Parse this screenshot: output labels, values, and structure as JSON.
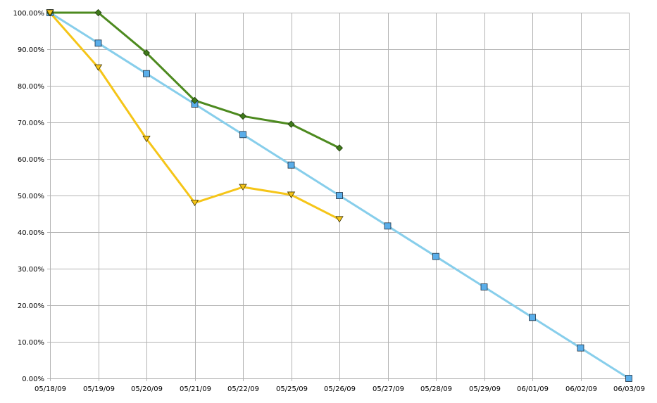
{
  "chart_data": {
    "type": "line",
    "title": "",
    "xlabel": "",
    "ylabel": "",
    "categories": [
      "05/18/09",
      "05/19/09",
      "05/20/09",
      "05/21/09",
      "05/22/09",
      "05/25/09",
      "05/26/09",
      "05/27/09",
      "05/28/09",
      "05/29/09",
      "06/01/09",
      "06/02/09",
      "06/03/09"
    ],
    "y_ticks": [
      "0.00%",
      "10.00%",
      "20.00%",
      "30.00%",
      "40.00%",
      "50.00%",
      "60.00%",
      "70.00%",
      "80.00%",
      "90.00%",
      "100.00%"
    ],
    "ylim": [
      0,
      1
    ],
    "grid": true,
    "legend": "none",
    "series": [
      {
        "color": "#87ceeb",
        "marker": "square",
        "marker_color": "#5aaeea",
        "values": [
          1.0,
          0.9167,
          0.8333,
          0.75,
          0.6667,
          0.5833,
          0.5,
          0.4167,
          0.3333,
          0.25,
          0.1667,
          0.0833,
          0.0
        ]
      },
      {
        "color": "#4d8a1f",
        "marker": "diamond",
        "marker_color": "#3f7a1a",
        "values": [
          1.0,
          1.0,
          0.89,
          0.76,
          0.717,
          0.695,
          0.63,
          null,
          null,
          null,
          null,
          null,
          null
        ]
      },
      {
        "color": "#f5c518",
        "marker": "triangle-down",
        "marker_color": "#f5c518",
        "values": [
          1.0,
          0.85,
          0.655,
          0.48,
          0.523,
          0.502,
          0.435,
          null,
          null,
          null,
          null,
          null,
          null
        ]
      }
    ]
  }
}
